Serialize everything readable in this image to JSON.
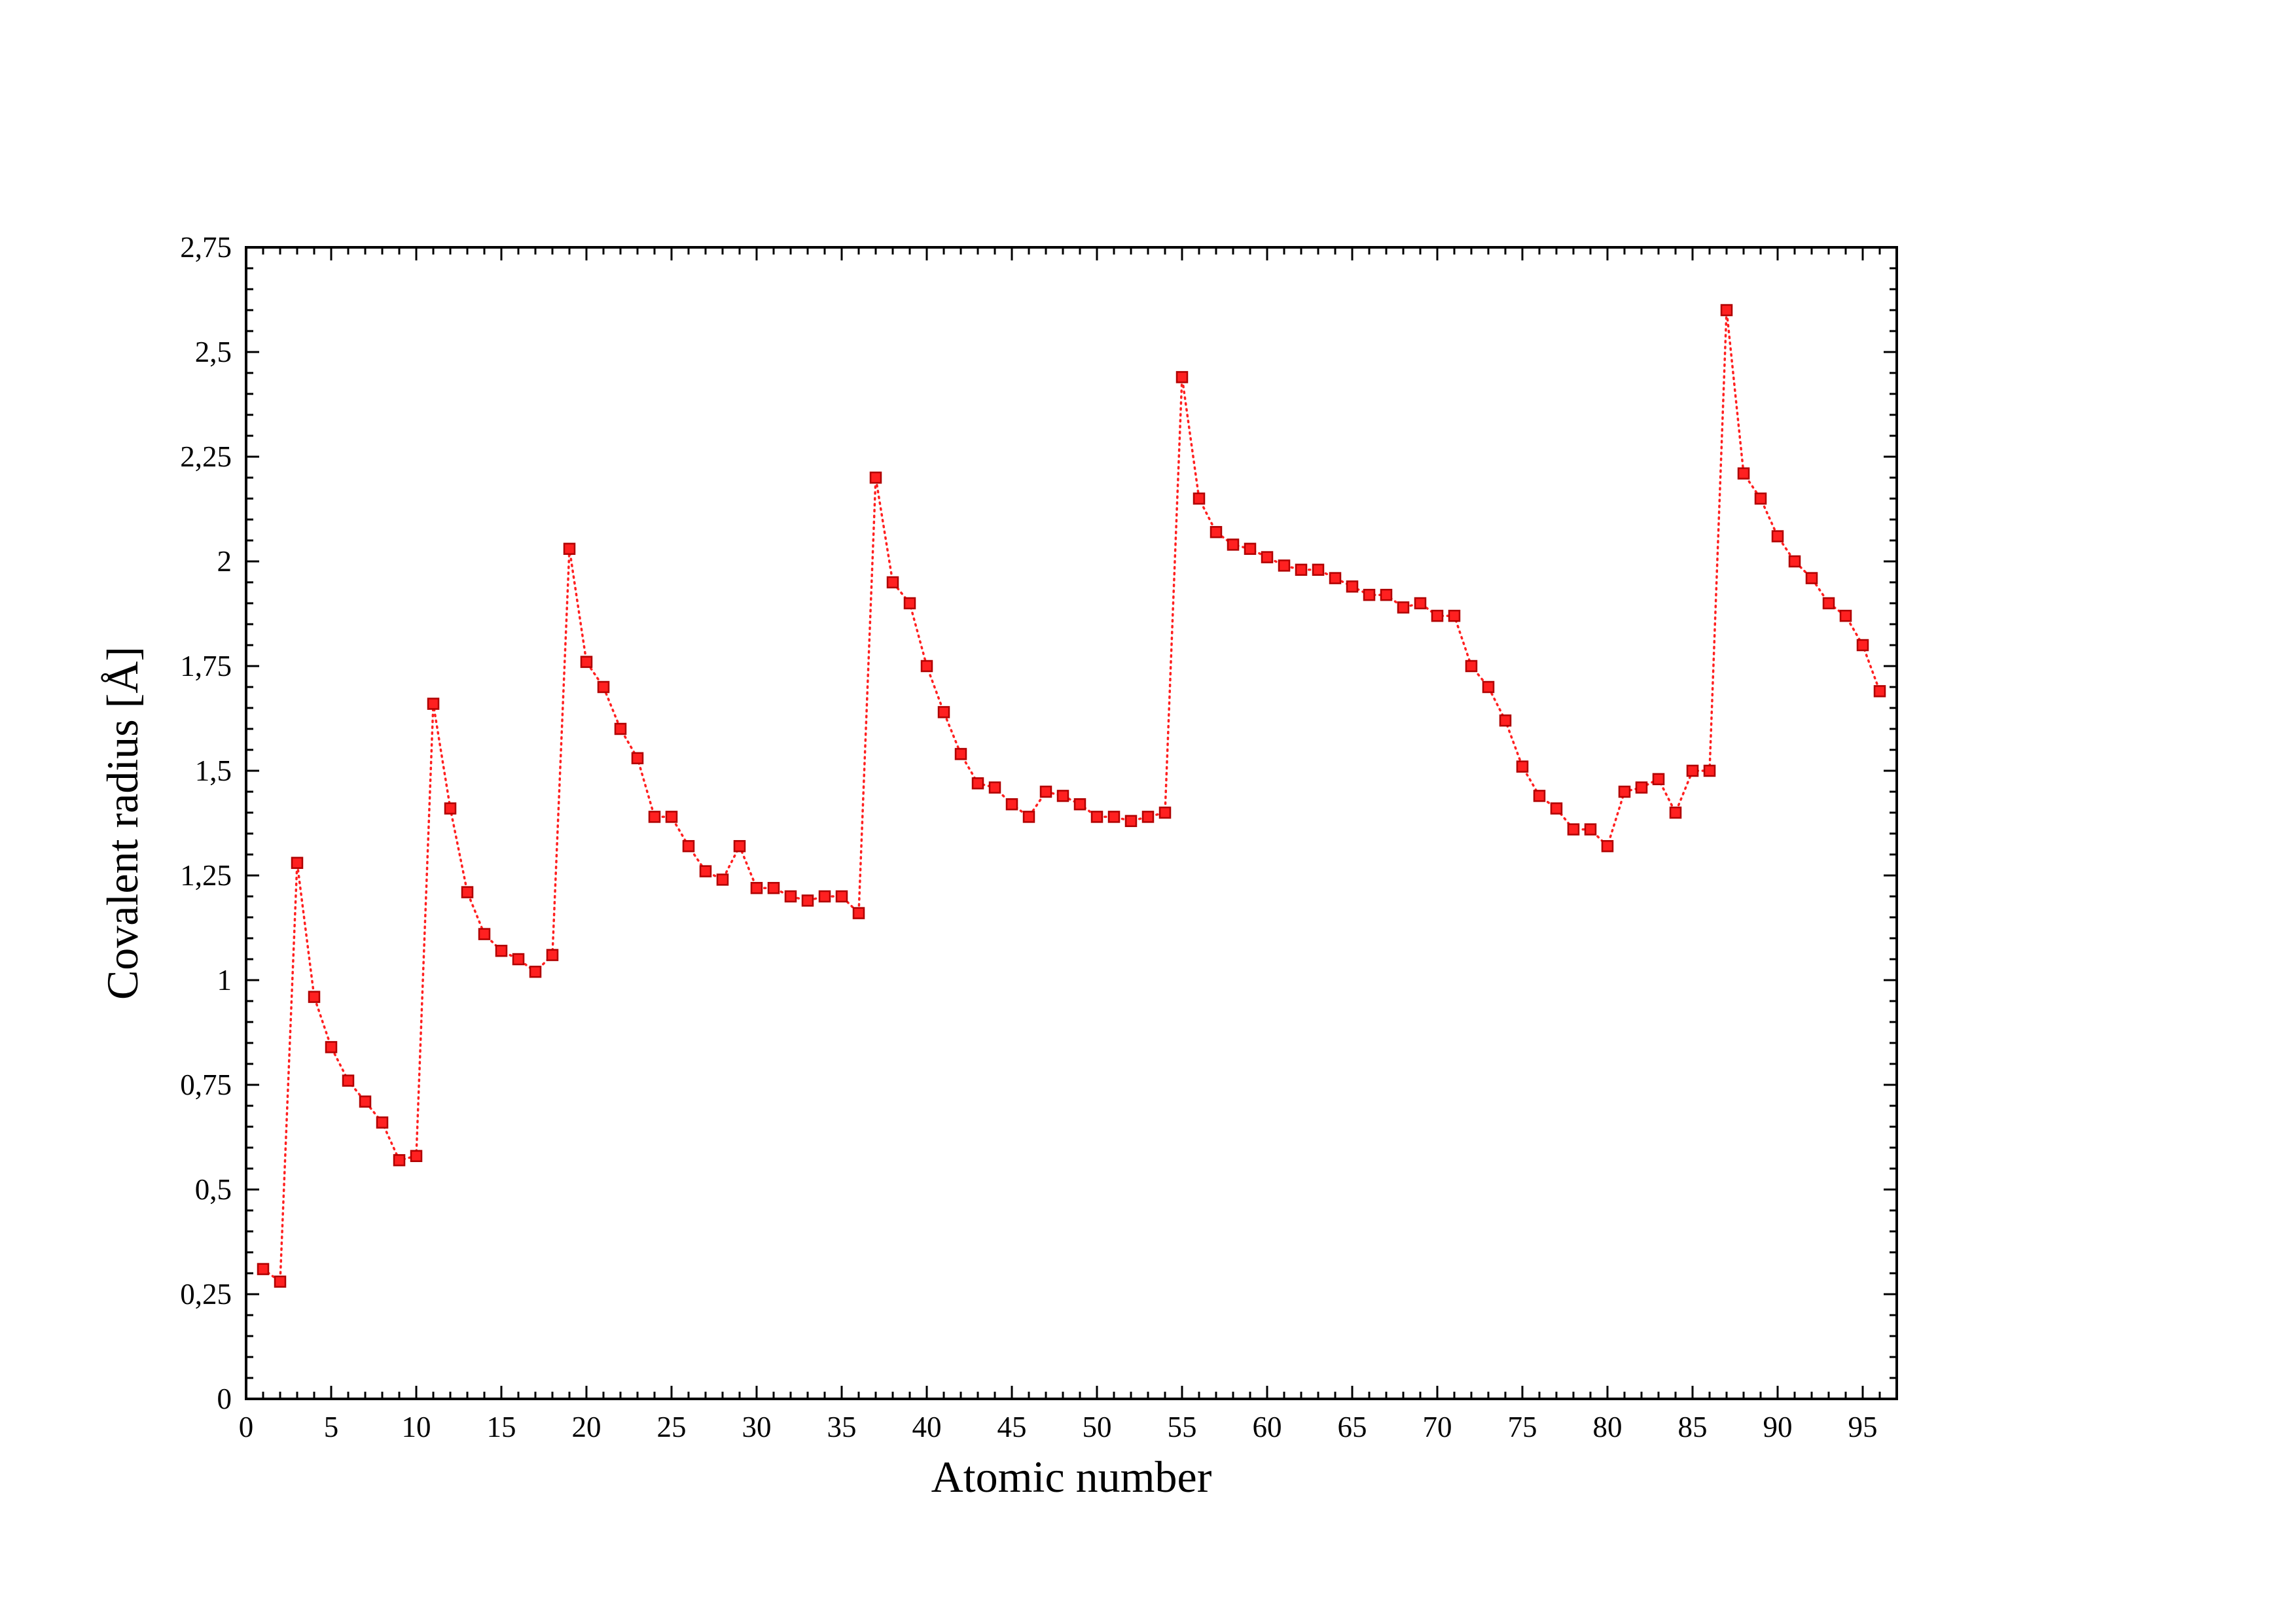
{
  "chart_data": {
    "type": "scatter",
    "xlabel": "Atomic number",
    "ylabel": "Covalent radius [Å]",
    "xlim": [
      0,
      97
    ],
    "ylim": [
      0,
      2.75
    ],
    "x_ticks": [
      0,
      5,
      10,
      15,
      20,
      25,
      30,
      35,
      40,
      45,
      50,
      55,
      60,
      65,
      70,
      75,
      80,
      85,
      90,
      95
    ],
    "x_tick_labels": [
      "0",
      "5",
      "10",
      "15",
      "20",
      "25",
      "30",
      "35",
      "40",
      "45",
      "50",
      "55",
      "60",
      "65",
      "70",
      "75",
      "80",
      "85",
      "90",
      "95"
    ],
    "y_ticks": [
      0,
      0.25,
      0.5,
      0.75,
      1,
      1.25,
      1.5,
      1.75,
      2,
      2.25,
      2.5,
      2.75
    ],
    "y_tick_labels": [
      "0",
      "0,25",
      "0,5",
      "0,75",
      "1",
      "1,25",
      "1,5",
      "1,75",
      "2",
      "2,25",
      "2,5",
      "2,75"
    ],
    "grid": false,
    "legend": "none",
    "marker": "square",
    "line_style": "dotted",
    "color": "#ff2020",
    "marker_edge_color": "#b00000",
    "x": [
      1,
      2,
      3,
      4,
      5,
      6,
      7,
      8,
      9,
      10,
      11,
      12,
      13,
      14,
      15,
      16,
      17,
      18,
      19,
      20,
      21,
      22,
      23,
      24,
      25,
      26,
      27,
      28,
      29,
      30,
      31,
      32,
      33,
      34,
      35,
      36,
      37,
      38,
      39,
      40,
      41,
      42,
      43,
      44,
      45,
      46,
      47,
      48,
      49,
      50,
      51,
      52,
      53,
      54,
      55,
      56,
      57,
      58,
      59,
      60,
      61,
      62,
      63,
      64,
      65,
      66,
      67,
      68,
      69,
      70,
      71,
      72,
      73,
      74,
      75,
      76,
      77,
      78,
      79,
      80,
      81,
      82,
      83,
      84,
      85,
      86,
      87,
      88,
      89,
      90,
      91,
      92,
      93,
      94,
      95,
      96
    ],
    "y": [
      0.31,
      0.28,
      1.28,
      0.96,
      0.84,
      0.76,
      0.71,
      0.66,
      0.57,
      0.58,
      1.66,
      1.41,
      1.21,
      1.11,
      1.07,
      1.05,
      1.02,
      1.06,
      2.03,
      1.76,
      1.7,
      1.6,
      1.53,
      1.39,
      1.39,
      1.32,
      1.26,
      1.24,
      1.32,
      1.22,
      1.22,
      1.2,
      1.19,
      1.2,
      1.2,
      1.16,
      2.2,
      1.95,
      1.9,
      1.75,
      1.64,
      1.54,
      1.47,
      1.46,
      1.42,
      1.39,
      1.45,
      1.44,
      1.42,
      1.39,
      1.39,
      1.38,
      1.39,
      1.4,
      2.44,
      2.15,
      2.07,
      2.04,
      2.03,
      2.01,
      1.99,
      1.98,
      1.98,
      1.96,
      1.94,
      1.92,
      1.92,
      1.89,
      1.9,
      1.87,
      1.87,
      1.75,
      1.7,
      1.62,
      1.51,
      1.44,
      1.41,
      1.36,
      1.36,
      1.32,
      1.45,
      1.46,
      1.48,
      1.4,
      1.5,
      1.5,
      2.6,
      2.21,
      2.15,
      2.06,
      2.0,
      1.96,
      1.9,
      1.87,
      1.8,
      1.69
    ]
  }
}
